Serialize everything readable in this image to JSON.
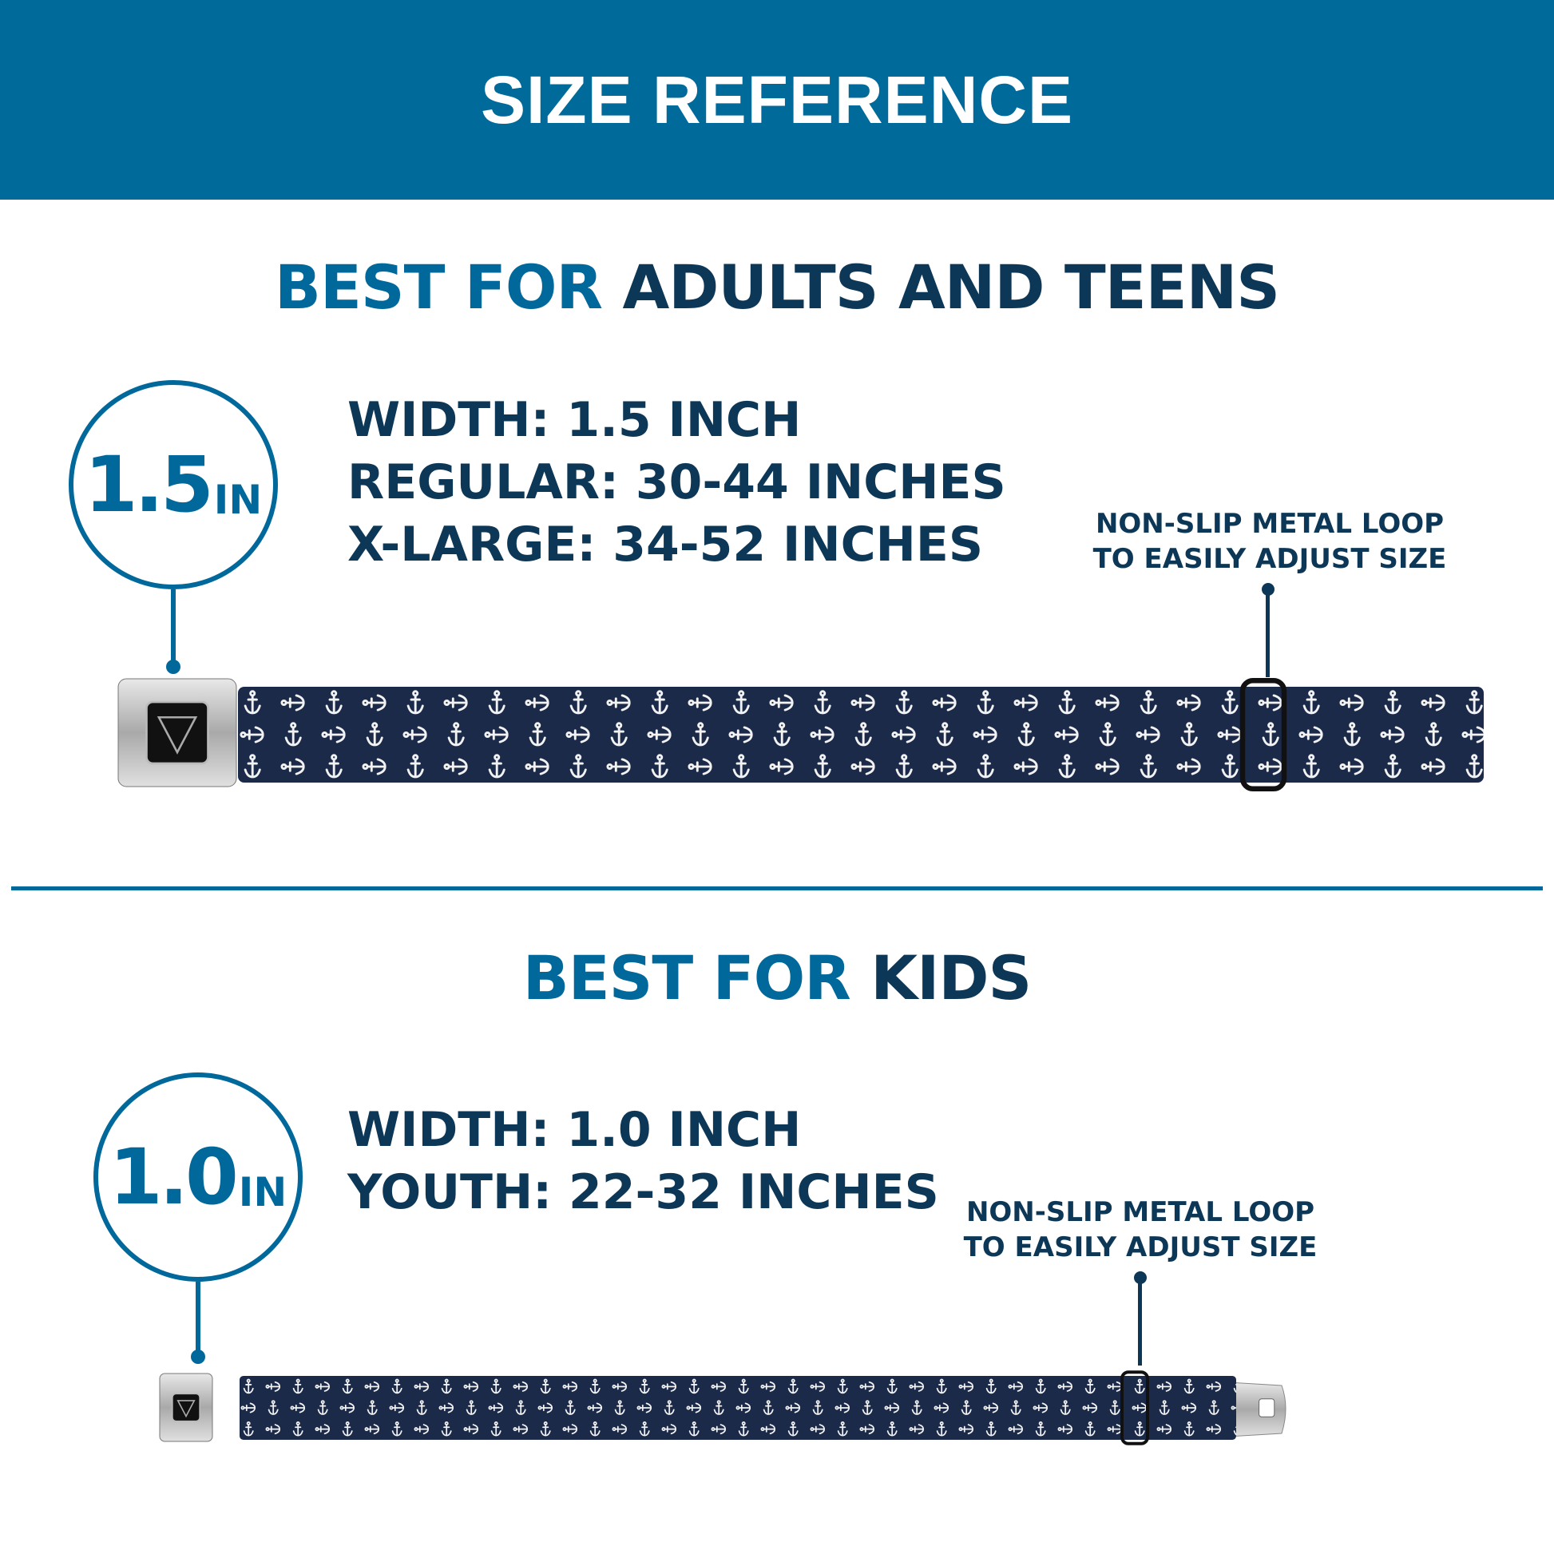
{
  "header": {
    "title": "SIZE REFERENCE"
  },
  "colors": {
    "brand_blue": "#006a9a",
    "navy_text": "#0d3756",
    "strap": "#1c2a4a"
  },
  "adults": {
    "heading_accent": "BEST FOR",
    "heading_main": "ADULTS AND TEENS",
    "badge_number": "1.5",
    "badge_unit": "IN",
    "specs": [
      "WIDTH: 1.5 INCH",
      "REGULAR: 30-44 INCHES",
      "X-LARGE: 34-52 INCHES"
    ],
    "note": [
      "NON-SLIP METAL LOOP",
      "TO EASILY ADJUST SIZE"
    ],
    "belt_pattern": "anchor-icon"
  },
  "kids": {
    "heading_accent": "BEST FOR",
    "heading_main": "KIDS",
    "badge_number": "1.0",
    "badge_unit": "IN",
    "specs": [
      "WIDTH: 1.0 INCH",
      "YOUTH: 22-32 INCHES"
    ],
    "note": [
      "NON-SLIP METAL LOOP",
      "TO EASILY ADJUST SIZE"
    ],
    "belt_pattern": "anchor-icon"
  }
}
